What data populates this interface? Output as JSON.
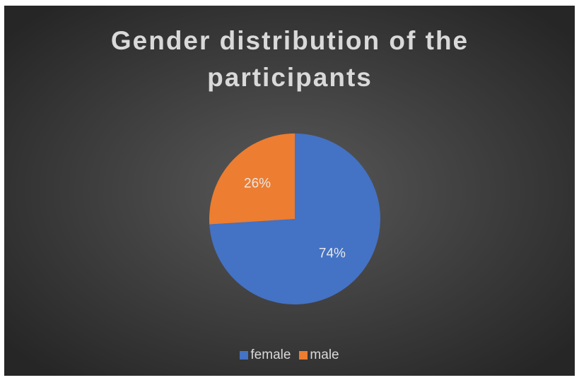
{
  "chart_data": {
    "type": "pie",
    "title": "Gender distribution of the participants",
    "categories": [
      "female",
      "male"
    ],
    "values": [
      74,
      26
    ],
    "value_labels": [
      "74%",
      "26%"
    ],
    "colors": [
      "#4472c4",
      "#ed7d31"
    ],
    "legend": "bottom"
  }
}
